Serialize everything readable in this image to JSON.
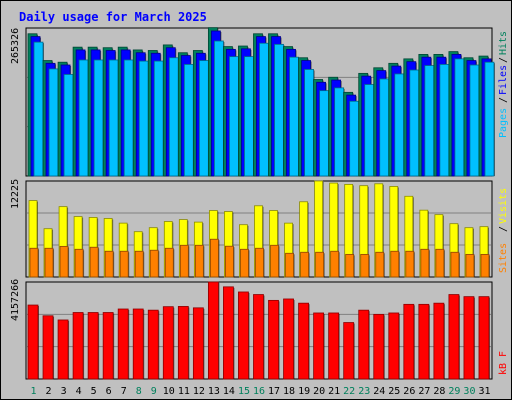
{
  "chart_data": [
    {
      "type": "bar",
      "panel": "hits-files-pages",
      "title": "Daily usage for March 2025",
      "colors": {
        "Hits": "#00805c",
        "Files": "#0000ff",
        "Pages": "#00c0ff"
      },
      "ymax_label": "265326",
      "ylim": [
        0,
        265326
      ],
      "categories": [
        "1",
        "2",
        "3",
        "4",
        "5",
        "6",
        "7",
        "8",
        "9",
        "10",
        "11",
        "12",
        "13",
        "14",
        "15",
        "16",
        "17",
        "18",
        "19",
        "20",
        "21",
        "22",
        "23",
        "24",
        "25",
        "26",
        "27",
        "28",
        "29",
        "30",
        "31"
      ],
      "series": [
        {
          "name": "Hits",
          "values": [
            255000,
            207000,
            204000,
            231000,
            231000,
            230000,
            231000,
            226000,
            225000,
            235000,
            221000,
            225000,
            266000,
            232000,
            233000,
            255000,
            255000,
            232000,
            212000,
            173000,
            177000,
            150000,
            184000,
            194000,
            202000,
            210000,
            218000,
            218000,
            223000,
            212000,
            215000
          ]
        },
        {
          "name": "Files",
          "values": [
            250000,
            202000,
            199000,
            226000,
            226000,
            225000,
            226000,
            221000,
            220000,
            230000,
            216000,
            220000,
            260000,
            227000,
            228000,
            250000,
            250000,
            227000,
            207000,
            168000,
            172000,
            145000,
            179000,
            189000,
            197000,
            205000,
            213000,
            213000,
            218000,
            207000,
            210000
          ]
        },
        {
          "name": "Pages",
          "values": [
            240000,
            192000,
            182000,
            208000,
            208000,
            208000,
            208000,
            206000,
            206000,
            212000,
            200000,
            207000,
            242000,
            214000,
            214000,
            238000,
            236000,
            213000,
            191000,
            153000,
            158000,
            134000,
            164000,
            174000,
            183000,
            190000,
            198000,
            200000,
            210000,
            199000,
            204000
          ]
        }
      ]
    },
    {
      "type": "bar",
      "panel": "visits-sites",
      "colors": {
        "Visits": "#ffff00",
        "Sites": "#ff8000"
      },
      "ymax_label": "12225",
      "ylim": [
        0,
        12225
      ],
      "categories": [
        "1",
        "2",
        "3",
        "4",
        "5",
        "6",
        "7",
        "8",
        "9",
        "10",
        "11",
        "12",
        "13",
        "14",
        "15",
        "16",
        "17",
        "18",
        "19",
        "20",
        "21",
        "22",
        "23",
        "24",
        "25",
        "26",
        "27",
        "28",
        "29",
        "30",
        "31"
      ],
      "series": [
        {
          "name": "Visits",
          "values": [
            9730,
            6150,
            8960,
            7690,
            7580,
            7450,
            6860,
            5770,
            6280,
            7060,
            7310,
            6990,
            8460,
            8330,
            6660,
            9070,
            8460,
            6860,
            9580,
            12225,
            11960,
            11790,
            11630,
            11870,
            11530,
            10280,
            8510,
            7940,
            6790,
            6280,
            6410
          ]
        },
        {
          "name": "Sites",
          "values": [
            3660,
            3660,
            3900,
            3530,
            3790,
            3280,
            3280,
            3280,
            3410,
            3660,
            4040,
            4040,
            4810,
            3920,
            3530,
            3660,
            4040,
            3020,
            3150,
            3150,
            3280,
            2880,
            2880,
            3150,
            3280,
            3280,
            3530,
            3530,
            3150,
            2880,
            2880
          ]
        }
      ]
    },
    {
      "type": "bar",
      "panel": "kbytes",
      "colors": {
        "KBytes": "#ff0000"
      },
      "ymax_label": "4157266",
      "ylim": [
        0,
        4157266
      ],
      "categories": [
        "1",
        "2",
        "3",
        "4",
        "5",
        "6",
        "7",
        "8",
        "9",
        "10",
        "11",
        "12",
        "13",
        "14",
        "15",
        "16",
        "17",
        "18",
        "19",
        "20",
        "21",
        "22",
        "23",
        "24",
        "25",
        "26",
        "27",
        "28",
        "29",
        "30",
        "31"
      ],
      "series": [
        {
          "name": "KBytes",
          "values": [
            3170000,
            2710000,
            2530000,
            2850000,
            2850000,
            2850000,
            3000000,
            3000000,
            2950000,
            3100000,
            3110000,
            3050000,
            4157266,
            3950000,
            3730000,
            3620000,
            3370000,
            3430000,
            3250000,
            2830000,
            2830000,
            2420000,
            2950000,
            2770000,
            2830000,
            3200000,
            3200000,
            3250000,
            3620000,
            3530000,
            3530000
          ]
        }
      ]
    }
  ],
  "labels": {
    "title": "Daily usage for March 2025",
    "panel1_legend": [
      "Pages",
      "/",
      "Files",
      "/",
      "Hits"
    ],
    "panel2_legend": [
      "Sites",
      "/",
      "Visits"
    ],
    "panel3_legend": [
      "kB F"
    ],
    "weekend_days": [
      "1",
      "8",
      "9",
      "15",
      "16",
      "22",
      "23",
      "29",
      "30"
    ],
    "colors": {
      "text": "#000000",
      "weekday": "#000000",
      "weekend": "#00805c",
      "title": "#0000ff"
    }
  }
}
